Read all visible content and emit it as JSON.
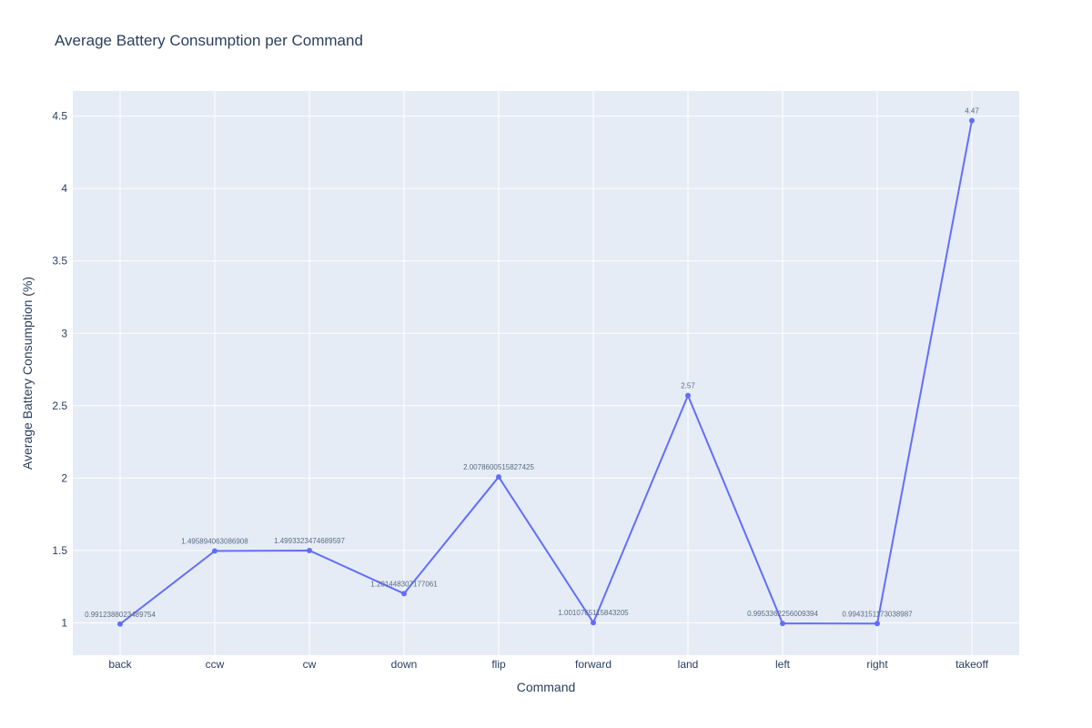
{
  "chart_data": {
    "type": "line",
    "title": "Average Battery Consumption per Command",
    "xlabel": "Command",
    "ylabel": "Average Battery Consumption (%)",
    "categories": [
      "back",
      "ccw",
      "cw",
      "down",
      "flip",
      "forward",
      "land",
      "left",
      "right",
      "takeoff"
    ],
    "values": [
      0.9912388023489754,
      1.495894063086908,
      1.4993323474689597,
      1.201448307177061,
      2.0078600515827425,
      1.0010765115843205,
      2.57,
      0.9953362256009394,
      0.9943151173038987,
      4.47
    ],
    "value_labels": [
      "0.9912388023489754",
      "1.495894063086908",
      "1.4993323474689597",
      "1.201448307177061",
      "2.0078600515827425",
      "1.0010765115843205",
      "2.57",
      "0.9953362256009394",
      "0.9943151173038987",
      "4.47"
    ],
    "ylim": [
      0.776,
      4.674
    ],
    "yticks": [
      1,
      1.5,
      2,
      2.5,
      3,
      3.5,
      4,
      4.5
    ],
    "ytick_labels": [
      "1",
      "1.5",
      "2",
      "2.5",
      "3",
      "3.5",
      "4",
      "4.5"
    ],
    "grid": true,
    "line_color": "#636efa",
    "plot_bg_color": "#e5ecf6",
    "grid_color": "#ffffff",
    "text_color": "#2a3f5f"
  }
}
